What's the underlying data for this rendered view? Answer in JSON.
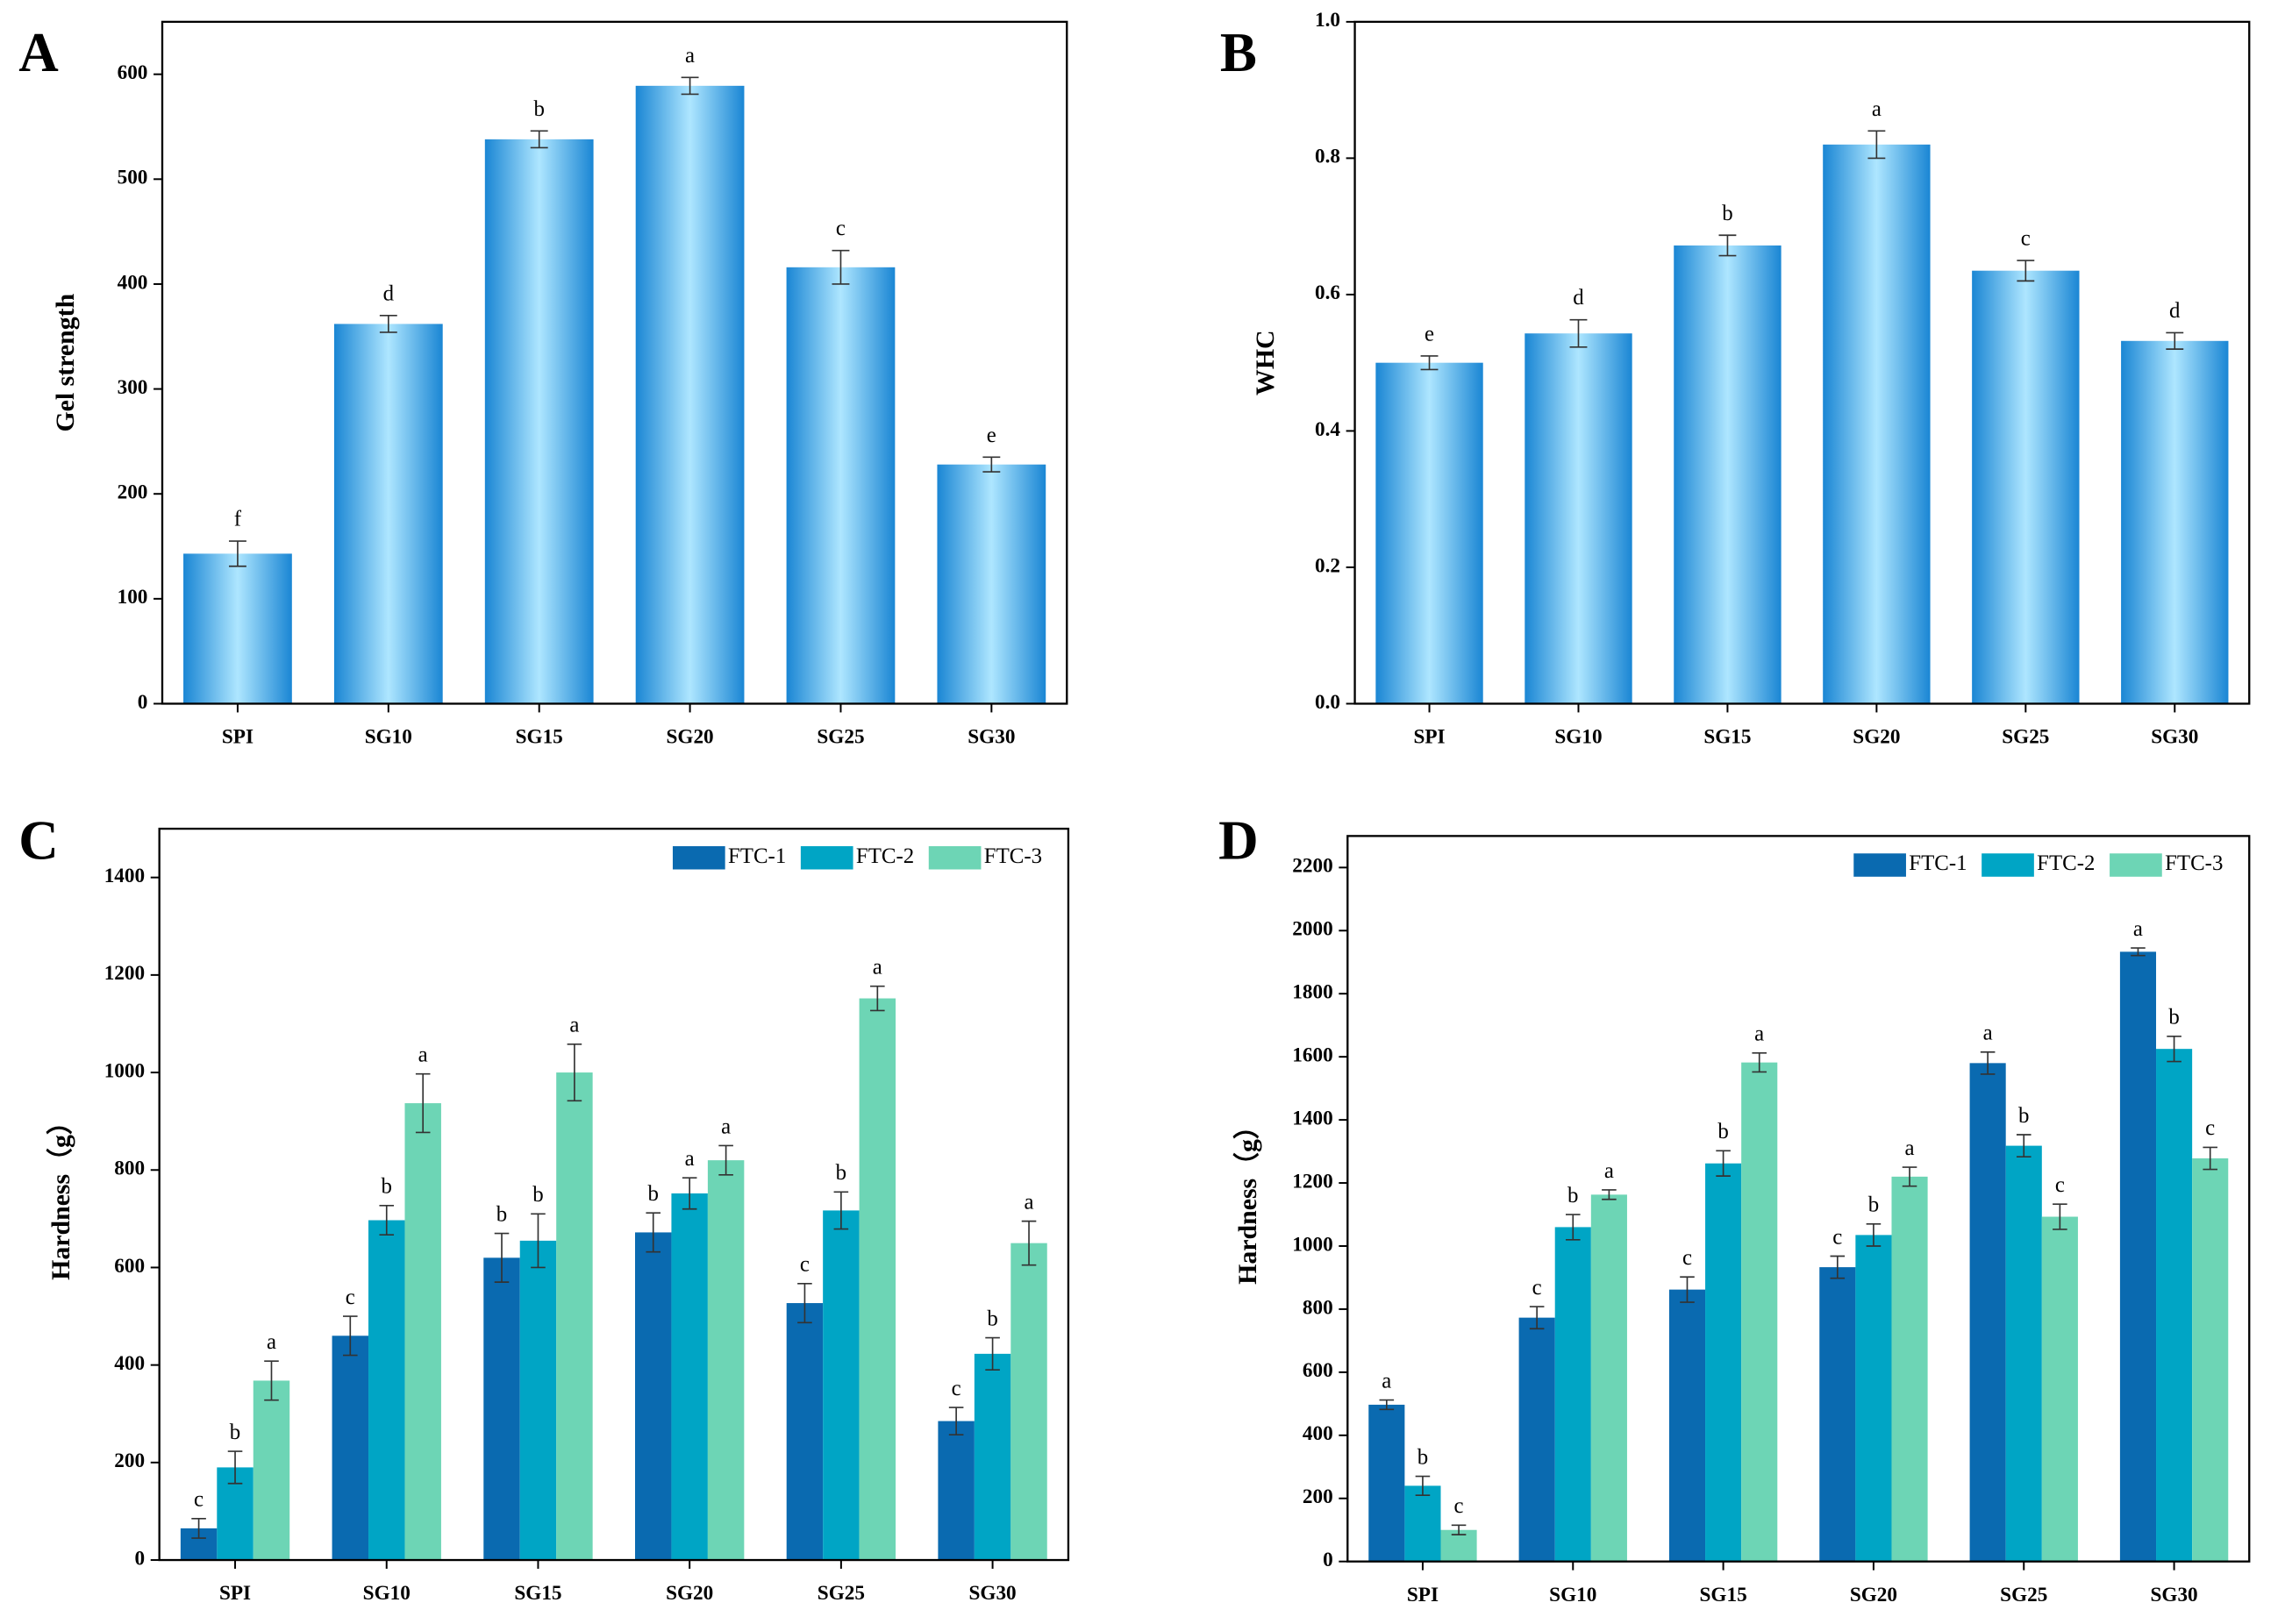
{
  "chart_data": [
    {
      "type": "bar",
      "panel": "A",
      "ylabel": "Gel strength",
      "categories": [
        "SPI",
        "SG10",
        "SG15",
        "SG20",
        "SG25",
        "SG30"
      ],
      "values": [
        143,
        362,
        538,
        589,
        416,
        228
      ],
      "errors": [
        12,
        8,
        8,
        8,
        16,
        7
      ],
      "letters": [
        "f",
        "d",
        "b",
        "a",
        "c",
        "e"
      ],
      "color": "#1a86d4",
      "highlight": "#aee6ff",
      "ylim": [
        0,
        650
      ],
      "yticks": [
        0,
        100,
        200,
        300,
        400,
        500,
        600
      ]
    },
    {
      "type": "bar",
      "panel": "B",
      "ylabel": "WHC",
      "categories": [
        "SPI",
        "SG10",
        "SG15",
        "SG20",
        "SG25",
        "SG30"
      ],
      "values": [
        0.5,
        0.543,
        0.672,
        0.82,
        0.635,
        0.532
      ],
      "errors": [
        0.01,
        0.02,
        0.015,
        0.02,
        0.015,
        0.012
      ],
      "letters": [
        "e",
        "d",
        "b",
        "a",
        "c",
        "d"
      ],
      "color": "#1a86d4",
      "highlight": "#aee6ff",
      "ylim": [
        0,
        1.0
      ],
      "yticks": [
        {
          "value": 0,
          "label": "0.0"
        },
        0.2,
        0.4,
        0.6,
        0.8,
        {
          "value": 1,
          "label": "1.0"
        }
      ]
    },
    {
      "type": "grouped_bar",
      "panel": "C",
      "ylabel": "Hardness（g）",
      "categories": [
        "SPI",
        "SG10",
        "SG15",
        "SG20",
        "SG25",
        "SG30"
      ],
      "series": [
        {
          "name": "FTC-1",
          "color": "#0a6ab0",
          "values": [
            65,
            460,
            620,
            672,
            527,
            285
          ],
          "errors": [
            20,
            40,
            50,
            40,
            40,
            28
          ],
          "letters": [
            "c",
            "c",
            "b",
            "b",
            "c",
            "c"
          ]
        },
        {
          "name": "FTC-2",
          "color": "#00a5c5",
          "values": [
            190,
            697,
            655,
            752,
            717,
            423
          ],
          "errors": [
            33,
            30,
            55,
            32,
            38,
            33
          ],
          "letters": [
            "b",
            "b",
            "b",
            "a",
            "b",
            "b"
          ]
        },
        {
          "name": "FTC-3",
          "color": "#6dd5b5",
          "values": [
            368,
            937,
            1000,
            820,
            1152,
            650
          ],
          "errors": [
            40,
            60,
            58,
            30,
            25,
            45
          ],
          "letters": [
            "a",
            "a",
            "a",
            "a",
            "a",
            "a"
          ]
        }
      ],
      "ylim": [
        0,
        1500
      ],
      "yticks": [
        0,
        200,
        400,
        600,
        800,
        1000,
        1200,
        1400
      ],
      "legend": "top-right"
    },
    {
      "type": "grouped_bar",
      "panel": "D",
      "ylabel": "Hardness（g）",
      "categories": [
        "SPI",
        "SG10",
        "SG15",
        "SG20",
        "SG25",
        "SG30"
      ],
      "series": [
        {
          "name": "FTC-1",
          "color": "#0a6ab0",
          "values": [
            497,
            773,
            862,
            933,
            1580,
            1933
          ],
          "errors": [
            15,
            35,
            40,
            35,
            35,
            12
          ],
          "letters": [
            "a",
            "c",
            "c",
            "c",
            "a",
            "a"
          ]
        },
        {
          "name": "FTC-2",
          "color": "#00a5c5",
          "values": [
            240,
            1060,
            1262,
            1035,
            1318,
            1625
          ],
          "errors": [
            30,
            40,
            40,
            35,
            35,
            40
          ],
          "letters": [
            "b",
            "b",
            "b",
            "b",
            "b",
            "b"
          ]
        },
        {
          "name": "FTC-3",
          "color": "#6dd5b5",
          "values": [
            100,
            1163,
            1582,
            1220,
            1093,
            1278
          ],
          "errors": [
            15,
            15,
            30,
            30,
            40,
            35
          ],
          "letters": [
            "c",
            "a",
            "a",
            "a",
            "c",
            "c"
          ]
        }
      ],
      "ylim": [
        0,
        2300
      ],
      "yticks": [
        0,
        200,
        400,
        600,
        800,
        1000,
        1200,
        1400,
        1600,
        1800,
        2000,
        2200
      ],
      "legend": "top-right"
    }
  ]
}
